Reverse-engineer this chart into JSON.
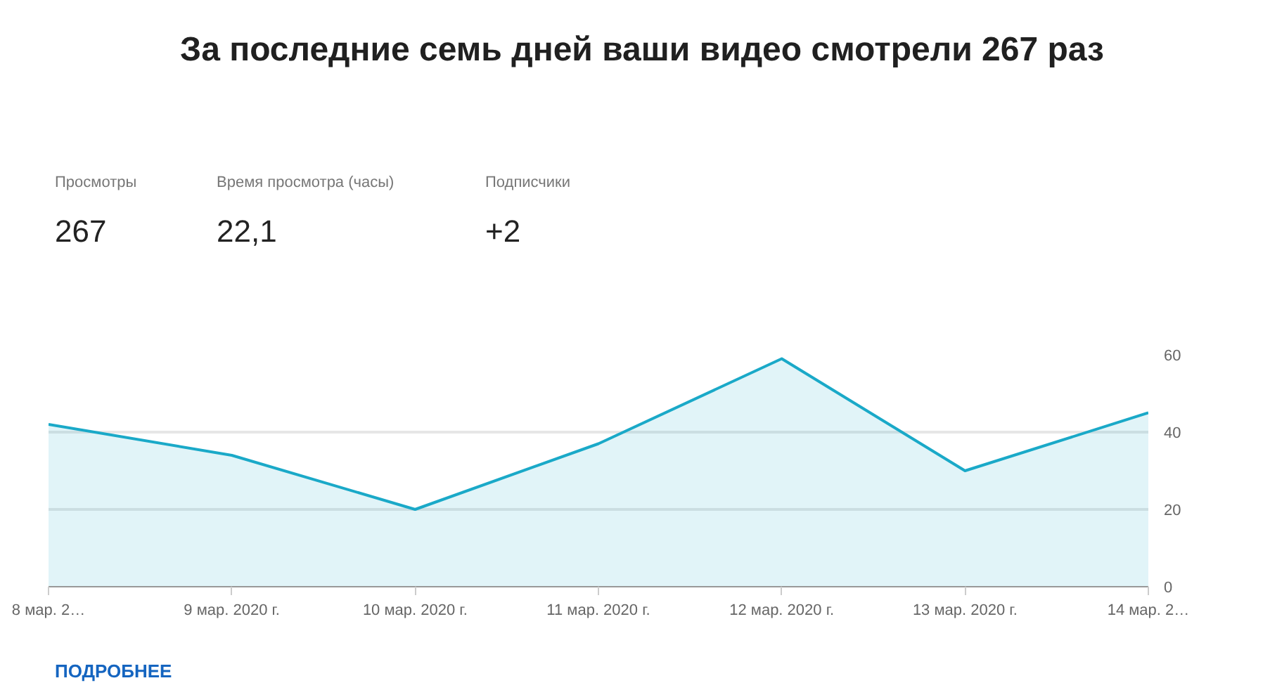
{
  "chart_data": {
    "type": "area",
    "title": "За последние семь дней ваши видео смотрели 267 раз",
    "categories": [
      "8 мар. 2…",
      "9 мар. 2020 г.",
      "10 мар. 2020 г.",
      "11 мар. 2020 г.",
      "12 мар. 2020 г.",
      "13 мар. 2020 г.",
      "14 мар. 2…"
    ],
    "series": [
      {
        "color": "#1aa9c8",
        "values": [
          42,
          34,
          20,
          37,
          59,
          30,
          45
        ]
      }
    ],
    "ylim": [
      0,
      60
    ],
    "yticks": [
      0,
      20,
      40,
      60
    ],
    "grid": "y",
    "annotations": [
      "Просмотры",
      "267",
      "Время просмотра (часы)",
      "22,1",
      "Подписчики",
      "+2",
      "ПОДРОБНЕЕ"
    ]
  }
}
